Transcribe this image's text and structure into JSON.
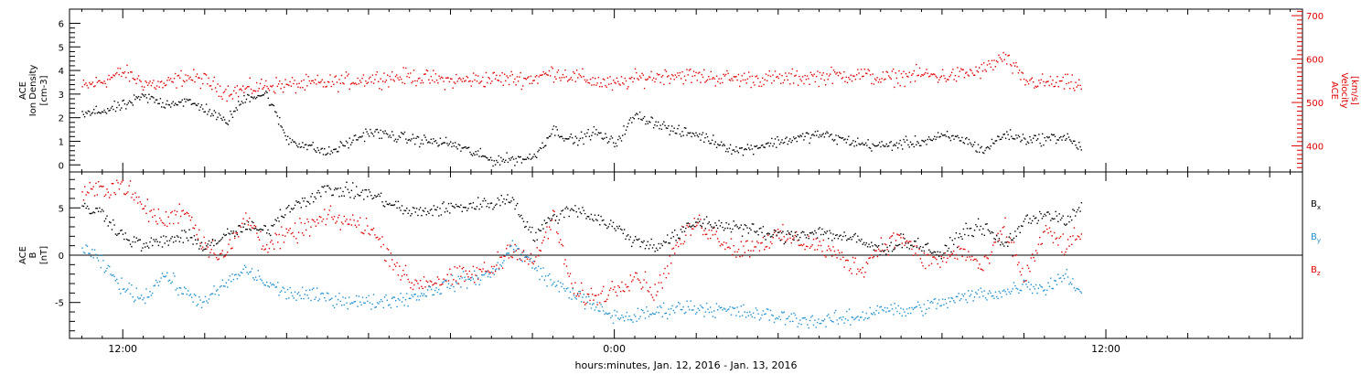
{
  "chart_data": [
    {
      "type": "scatter",
      "panel": "top",
      "ylabel": [
        "ACE",
        "Ion Density",
        "[cm-3]"
      ],
      "ylim": [
        -0.3,
        6.6
      ],
      "yticks": [
        0,
        1,
        2,
        3,
        4,
        5,
        6
      ],
      "y2label": [
        "ACE",
        "Velocity",
        "[km/s]"
      ],
      "y2lim": [
        340,
        715
      ],
      "y2ticks": [
        400,
        500,
        600,
        700
      ],
      "colors": {
        "density": "#000000",
        "velocity": "#e00000"
      },
      "series": [
        {
          "axis": "left",
          "x": [
            -1.0,
            -0.5,
            0.0,
            0.5,
            1.0,
            1.5,
            2.0,
            2.5,
            3.0,
            3.5,
            4.0,
            5.0,
            6.0,
            7.0,
            8.0,
            9.0,
            10.0,
            10.5,
            11.0,
            11.5,
            12.0,
            12.5,
            13.0,
            13.5,
            14.0,
            15.0,
            16.0,
            17.0,
            18.0,
            18.5,
            19.0,
            19.5,
            20.0,
            20.5,
            21.0,
            21.5,
            22.0,
            22.5,
            23.0,
            23.4
          ],
          "y": [
            2.1,
            2.3,
            2.5,
            2.9,
            2.6,
            2.7,
            2.4,
            1.8,
            2.9,
            3.0,
            1.1,
            0.5,
            1.4,
            1.1,
            0.9,
            0.2,
            0.3,
            1.5,
            1.0,
            1.4,
            0.9,
            2.1,
            1.8,
            1.4,
            1.3,
            0.6,
            1.0,
            1.3,
            0.9,
            0.8,
            0.9,
            1.0,
            1.2,
            1.1,
            0.6,
            1.3,
            1.1,
            1.1,
            1.2,
            0.7
          ]
        },
        {
          "axis": "right",
          "x": [
            -1.0,
            -0.5,
            0.0,
            0.5,
            1.0,
            1.5,
            2.0,
            2.5,
            3.0,
            3.5,
            4.0,
            5.0,
            6.0,
            7.0,
            8.0,
            9.0,
            10.0,
            10.5,
            11.0,
            11.5,
            12.0,
            12.5,
            13.0,
            13.5,
            14.0,
            15.0,
            16.0,
            17.0,
            18.0,
            18.5,
            19.0,
            19.5,
            20.0,
            20.5,
            21.0,
            21.5,
            22.0,
            22.5,
            23.0,
            23.4
          ],
          "y": [
            535,
            550,
            570,
            545,
            540,
            560,
            550,
            525,
            530,
            540,
            540,
            545,
            555,
            560,
            550,
            555,
            555,
            570,
            560,
            550,
            540,
            555,
            560,
            565,
            560,
            555,
            555,
            560,
            565,
            555,
            560,
            565,
            560,
            565,
            575,
            605,
            550,
            545,
            545,
            540
          ]
        }
      ]
    },
    {
      "type": "scatter",
      "panel": "bottom",
      "ylabel": [
        "ACE",
        "B",
        "[nT]"
      ],
      "ylim": [
        -8.8,
        8.8
      ],
      "yticks": [
        -5,
        0,
        5
      ],
      "zero_line": true,
      "series": [
        {
          "name": "Bx",
          "color": "#000000",
          "x": [
            -1.0,
            -0.5,
            0.0,
            0.5,
            1.0,
            1.5,
            2.0,
            2.5,
            3.0,
            3.5,
            4.0,
            5.0,
            6.0,
            7.0,
            8.0,
            9.0,
            9.5,
            10.0,
            10.5,
            11.0,
            11.5,
            12.0,
            12.5,
            13.0,
            13.5,
            14.0,
            15.0,
            16.0,
            17.0,
            18.0,
            18.5,
            19.0,
            19.5,
            20.0,
            20.5,
            21.0,
            21.5,
            22.0,
            22.5,
            23.0,
            23.4
          ],
          "y": [
            5.0,
            4.5,
            2.0,
            1.0,
            1.5,
            2.0,
            1.0,
            2.0,
            3.0,
            2.5,
            5.0,
            7.0,
            6.5,
            4.5,
            5.0,
            5.5,
            6.0,
            2.0,
            4.0,
            5.0,
            4.0,
            3.0,
            1.5,
            1.0,
            2.0,
            3.5,
            3.0,
            2.0,
            2.5,
            1.5,
            0.5,
            1.5,
            1.0,
            0.0,
            2.5,
            3.0,
            1.0,
            3.5,
            4.5,
            3.5,
            5.0
          ]
        },
        {
          "name": "By",
          "color": "#1e90d0",
          "x": [
            -1.0,
            -0.5,
            0.0,
            0.5,
            1.0,
            1.5,
            2.0,
            2.5,
            3.0,
            3.5,
            4.0,
            5.0,
            6.0,
            7.0,
            8.0,
            9.0,
            9.5,
            10.0,
            10.5,
            11.0,
            11.5,
            12.0,
            12.5,
            13.0,
            13.5,
            14.0,
            15.0,
            16.0,
            17.0,
            18.0,
            18.5,
            19.0,
            19.5,
            20.0,
            20.5,
            21.0,
            21.5,
            22.0,
            22.5,
            23.0,
            23.4
          ],
          "y": [
            1.0,
            -1.0,
            -3.5,
            -4.5,
            -2.0,
            -4.0,
            -5.0,
            -3.0,
            -1.5,
            -3.0,
            -4.0,
            -4.5,
            -5.0,
            -4.5,
            -3.0,
            -2.0,
            1.0,
            -1.0,
            -3.0,
            -4.0,
            -5.5,
            -6.5,
            -6.5,
            -6.0,
            -5.5,
            -5.5,
            -6.0,
            -6.5,
            -7.0,
            -6.5,
            -5.5,
            -6.0,
            -5.5,
            -5.0,
            -4.5,
            -4.0,
            -4.0,
            -3.0,
            -3.5,
            -2.0,
            -4.0
          ]
        },
        {
          "name": "Bz",
          "color": "#e00000",
          "x": [
            -1.0,
            -0.5,
            0.0,
            0.5,
            1.0,
            1.5,
            2.0,
            2.5,
            3.0,
            3.5,
            4.0,
            5.0,
            6.0,
            7.0,
            8.0,
            9.0,
            9.5,
            10.0,
            10.5,
            11.0,
            11.5,
            12.0,
            12.5,
            13.0,
            13.5,
            14.0,
            15.0,
            16.0,
            17.0,
            18.0,
            18.5,
            19.0,
            19.5,
            20.0,
            20.5,
            21.0,
            21.5,
            22.0,
            22.5,
            23.0,
            23.4
          ],
          "y": [
            6.5,
            7.0,
            7.5,
            5.0,
            3.5,
            5.0,
            1.0,
            0.0,
            4.0,
            1.0,
            2.0,
            4.0,
            3.0,
            -3.0,
            -2.5,
            -1.5,
            1.0,
            -1.0,
            4.0,
            -4.0,
            -4.5,
            -3.5,
            -2.0,
            -4.0,
            1.0,
            3.5,
            0.5,
            2.0,
            1.0,
            -1.5,
            1.0,
            2.0,
            -0.5,
            -0.5,
            0.5,
            -1.5,
            3.0,
            -2.5,
            2.5,
            1.0,
            2.0
          ]
        }
      ]
    }
  ],
  "x_axis": {
    "range_hours": [
      -1.3,
      28.8
    ],
    "major_ticks": [
      0,
      12,
      24
    ],
    "tick_labels": [
      "12:00",
      "0:00",
      "12:00"
    ],
    "minor_step_hours": 2,
    "title": "hours:minutes, Jan. 12, 2016 - Jan. 13, 2016"
  },
  "legend": {
    "bx": "B",
    "bx_sub": "x",
    "by": "B",
    "by_sub": "y",
    "bz": "B",
    "bz_sub": "z"
  }
}
